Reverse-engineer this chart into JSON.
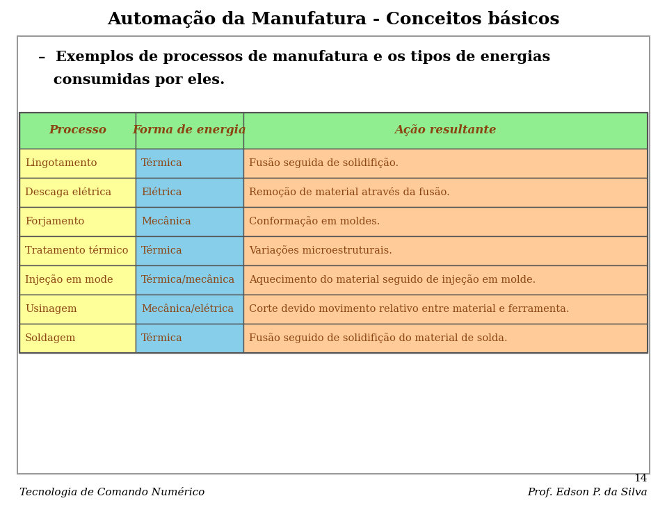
{
  "title": "Automação da Manufatura - Conceitos básicos",
  "subtitle_line1": "–  Exemplos de processos de manufatura e os tipos de energias",
  "subtitle_line2": "   consumidas por eles.",
  "table_headers": [
    "Processo",
    "Forma de energia",
    "Ação resultante"
  ],
  "table_rows": [
    [
      "Lingotamento",
      "Térmica",
      "Fusão seguida de solidifição."
    ],
    [
      "Descaga elétrica",
      "Elétrica",
      "Remoção de material através da fusão."
    ],
    [
      "Forjamento",
      "Mecânica",
      "Conformação em moldes."
    ],
    [
      "Tratamento térmico",
      "Térmica",
      "Variações microestruturais."
    ],
    [
      "Injeção em mode",
      "Térmica/mecânica",
      "Aquecimento do material seguido de injeção em molde."
    ],
    [
      "Usinagem",
      "Mecânica/elétrica",
      "Corte devido movimento relativo entre material e ferramenta."
    ],
    [
      "Soldagem",
      "Térmica",
      "Fusão seguido de solidifição do material de solda."
    ]
  ],
  "header_color": "#90EE90",
  "col1_color": "#FFFF99",
  "col2_color": "#87CEEB",
  "col3_color": "#FFCC99",
  "border_color": "#555555",
  "text_color": "#8B4513",
  "title_color": "#000000",
  "bg_color": "#FFFFFF",
  "footer_left": "Tecnologia de Comando Numérico",
  "footer_right": "Prof. Edson P. da Silva",
  "page_number": "14"
}
